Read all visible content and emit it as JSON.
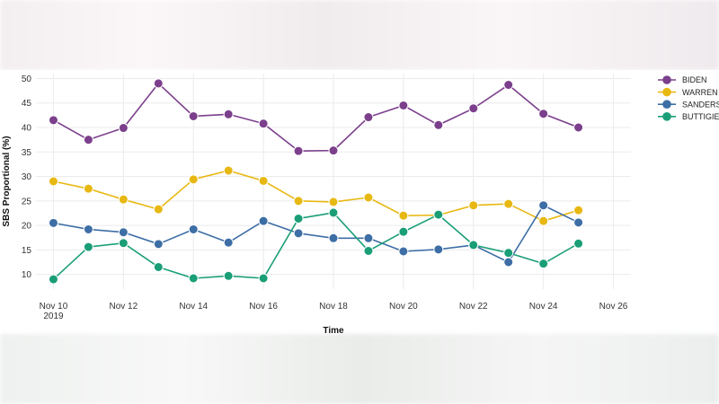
{
  "chart_data": {
    "type": "line",
    "xlabel": "Time",
    "ylabel": "SBS Proportional (%)",
    "ylim": [
      7,
      51
    ],
    "yticks": [
      10,
      15,
      20,
      25,
      30,
      35,
      40,
      45,
      50
    ],
    "x_days": [
      10,
      11,
      12,
      13,
      14,
      15,
      16,
      17,
      18,
      19,
      20,
      21,
      22,
      23,
      24,
      25
    ],
    "xlim": [
      9.5,
      26.5
    ],
    "xticks": [
      {
        "day": 10,
        "label": "Nov 10",
        "sublabel": "2019"
      },
      {
        "day": 12,
        "label": "Nov 12"
      },
      {
        "day": 14,
        "label": "Nov 14"
      },
      {
        "day": 16,
        "label": "Nov 16"
      },
      {
        "day": 18,
        "label": "Nov 18"
      },
      {
        "day": 20,
        "label": "Nov 20"
      },
      {
        "day": 22,
        "label": "Nov 22"
      },
      {
        "day": 24,
        "label": "Nov 24"
      },
      {
        "day": 26,
        "label": "Nov 26"
      }
    ],
    "legend_position": "top-right",
    "series": [
      {
        "name": "BIDEN",
        "color": "#7b3f8c",
        "values": [
          41.5,
          37.5,
          39.9,
          49.0,
          42.3,
          42.7,
          40.8,
          35.2,
          35.3,
          42.1,
          44.5,
          40.5,
          43.9,
          48.7,
          42.8,
          40.0
        ]
      },
      {
        "name": "WARREN",
        "color": "#e8b812",
        "values": [
          29.0,
          27.5,
          25.3,
          23.3,
          29.4,
          31.2,
          29.1,
          25.0,
          24.8,
          25.7,
          22.0,
          22.1,
          24.1,
          24.4,
          20.9,
          23.1
        ]
      },
      {
        "name": "SANDERS",
        "color": "#3d6ea5",
        "values": [
          20.5,
          19.2,
          18.6,
          16.2,
          19.2,
          16.5,
          20.9,
          18.4,
          17.4,
          17.4,
          14.7,
          15.1,
          16.0,
          12.5,
          24.1,
          20.6
        ]
      },
      {
        "name": "BUTTIGIEG",
        "color": "#1a9e77",
        "values": [
          9.0,
          15.6,
          16.4,
          11.5,
          9.2,
          9.7,
          9.2,
          21.4,
          22.6,
          14.8,
          18.7,
          22.2,
          16.0,
          14.4,
          12.2,
          16.3
        ]
      }
    ]
  }
}
